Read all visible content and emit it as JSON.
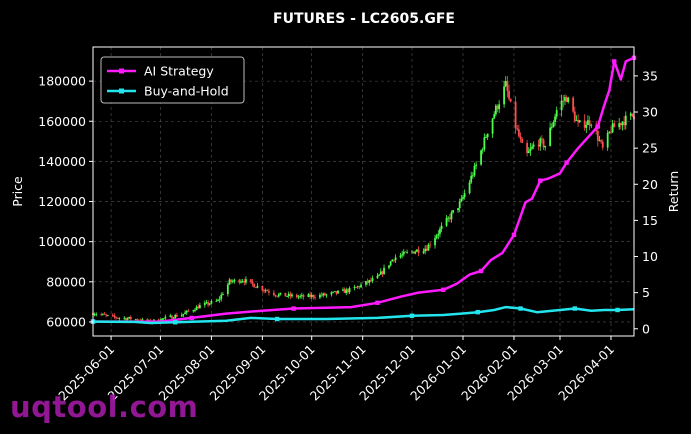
{
  "watermark": "uqtool.com",
  "chart_data": {
    "type": "candlestick+line",
    "title": "FUTURES - LC2605.GFE",
    "ylabel": "Price",
    "y2label": "Return",
    "ylim": [
      53000,
      197000
    ],
    "y2lim": [
      -1,
      39
    ],
    "yticks": [
      60000,
      80000,
      100000,
      120000,
      140000,
      160000,
      180000
    ],
    "y2ticks": [
      0,
      5,
      10,
      15,
      20,
      25,
      30,
      35
    ],
    "xlim": [
      "2025-05-21",
      "2026-04-15"
    ],
    "xticks": [
      "2025-06-01",
      "2025-07-01",
      "2025-08-01",
      "2025-09-01",
      "2025-10-01",
      "2025-11-01",
      "2025-12-01",
      "2026-01-01",
      "2026-02-01",
      "2026-03-01",
      "2026-04-01"
    ],
    "grid": true,
    "legend": "upper-left",
    "colors": {
      "background": "#000000",
      "up": "#4cff4c",
      "down": "#ff4d4d",
      "strategy": "#ff1aff",
      "buyhold": "#22e5ee",
      "grid": "#555555",
      "text": "#ffffff"
    },
    "price_path": [
      [
        "2025-05-21",
        64500
      ],
      [
        "2025-06-01",
        62500
      ],
      [
        "2025-06-15",
        61500
      ],
      [
        "2025-06-24",
        60000
      ],
      [
        "2025-07-05",
        62000
      ],
      [
        "2025-07-15",
        64000
      ],
      [
        "2025-07-25",
        68000
      ],
      [
        "2025-08-05",
        70500
      ],
      [
        "2025-08-12",
        80000
      ],
      [
        "2025-08-20",
        81000
      ],
      [
        "2025-08-28",
        78000
      ],
      [
        "2025-09-10",
        73500
      ],
      [
        "2025-09-25",
        72500
      ],
      [
        "2025-10-10",
        73500
      ],
      [
        "2025-10-25",
        76000
      ],
      [
        "2025-11-10",
        82000
      ],
      [
        "2025-11-20",
        92000
      ],
      [
        "2025-12-01",
        95000
      ],
      [
        "2025-12-10",
        97000
      ],
      [
        "2025-12-20",
        108000
      ],
      [
        "2025-12-31",
        120000
      ],
      [
        "2026-01-10",
        140000
      ],
      [
        "2026-01-17",
        158000
      ],
      [
        "2026-01-22",
        168000
      ],
      [
        "2026-01-27",
        178000
      ],
      [
        "2026-02-01",
        160000
      ],
      [
        "2026-02-08",
        142000
      ],
      [
        "2026-02-15",
        150000
      ],
      [
        "2026-02-20",
        148000
      ],
      [
        "2026-02-28",
        168000
      ],
      [
        "2026-03-05",
        172000
      ],
      [
        "2026-03-12",
        158000
      ],
      [
        "2026-03-20",
        160000
      ],
      [
        "2026-03-27",
        146000
      ],
      [
        "2026-04-01",
        156000
      ],
      [
        "2026-04-08",
        160000
      ],
      [
        "2026-04-15",
        163000
      ]
    ],
    "series": [
      {
        "name": "AI Strategy",
        "x": [
          "2025-05-21",
          "2025-06-15",
          "2025-07-01",
          "2025-07-20",
          "2025-08-10",
          "2025-09-01",
          "2025-09-20",
          "2025-10-10",
          "2025-10-25",
          "2025-11-10",
          "2025-11-25",
          "2025-12-05",
          "2025-12-20",
          "2025-12-28",
          "2026-01-05",
          "2026-01-12",
          "2026-01-18",
          "2026-01-25",
          "2026-02-01",
          "2026-02-08",
          "2026-02-12",
          "2026-02-17",
          "2026-02-22",
          "2026-03-01",
          "2026-03-05",
          "2026-03-12",
          "2026-03-18",
          "2026-03-24",
          "2026-03-28",
          "2026-03-31",
          "2026-04-03",
          "2026-04-07",
          "2026-04-10",
          "2026-04-15"
        ],
        "values": [
          1.0,
          1.0,
          1.0,
          1.5,
          2.1,
          2.5,
          2.8,
          2.9,
          3.0,
          3.6,
          4.5,
          5.0,
          5.4,
          6.2,
          7.5,
          8.0,
          9.5,
          10.5,
          13.0,
          17.5,
          18.0,
          20.5,
          20.8,
          21.5,
          23.0,
          25.0,
          26.5,
          28.0,
          31.0,
          33.0,
          37.0,
          34.5,
          37.0,
          37.5
        ]
      },
      {
        "name": "Buy-and-Hold",
        "x": [
          "2025-05-21",
          "2025-06-15",
          "2025-06-25",
          "2025-07-10",
          "2025-08-10",
          "2025-08-25",
          "2025-09-10",
          "2025-10-10",
          "2025-11-10",
          "2025-12-01",
          "2025-12-20",
          "2025-12-31",
          "2026-01-10",
          "2026-01-20",
          "2026-01-27",
          "2026-02-05",
          "2026-02-15",
          "2026-03-01",
          "2026-03-10",
          "2026-03-20",
          "2026-03-28",
          "2026-04-05",
          "2026-04-15"
        ],
        "values": [
          1.0,
          0.95,
          0.8,
          0.9,
          1.1,
          1.5,
          1.35,
          1.35,
          1.5,
          1.8,
          1.9,
          2.1,
          2.3,
          2.6,
          3.0,
          2.8,
          2.3,
          2.6,
          2.8,
          2.5,
          2.6,
          2.6,
          2.7
        ]
      }
    ]
  }
}
